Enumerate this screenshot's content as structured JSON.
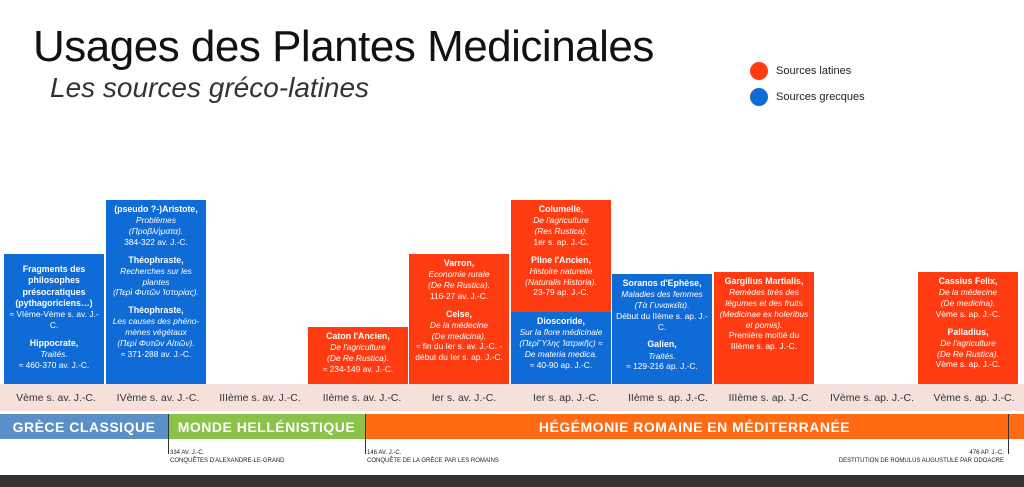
{
  "title": "Usages des Plantes Medicinales",
  "subtitle": "Les sources gréco-latines",
  "legend": [
    {
      "label": "Sources latines",
      "color": "#ff3b12"
    },
    {
      "label": "Sources grecques",
      "color": "#0f6bd6"
    }
  ],
  "centuries": [
    "Vème s. av. J.-C.",
    "IVème s. av. J.-C.",
    "IIIème s. av. J.-C.",
    "IIème s. av. J.-C.",
    "Ier s. av. J.-C.",
    "Ier s. ap. J.-C.",
    "IIème s. ap. J.-C.",
    "IIIème s. ap. J.-C.",
    "IVème s. ap. J.-C.",
    "Vème s. ap. J.-C."
  ],
  "periods": [
    {
      "label": "GRÈCE CLASSIQUE",
      "color": "#5b8fc7"
    },
    {
      "label": "MONDE HELLÉNISTIQUE",
      "color": "#8bc34a"
    },
    {
      "label": "HÉGÉMONIE ROMAINE EN MÉDITERRANÉE",
      "color": "#ff6a13"
    }
  ],
  "events": [
    {
      "date": "334 AV. J.-C.",
      "label": "CONQUÊTES D'ALEXANDRE-LE-GRAND"
    },
    {
      "date": "146 AV. J.-C.",
      "label": "CONQUÊTE DE LA GRÈCE PAR LES ROMAINS"
    },
    {
      "date": "476 AP. J.-C.",
      "label": "DESTITUTION DE ROMULUS AUGUSTULE PAR ODOACRE"
    }
  ],
  "boxes": [
    {
      "color": "blue",
      "entries": [
        {
          "author": "Fragments des philosophes présocratiques (pythagoriciens…)",
          "work": "",
          "orig": "",
          "date": "≈ VIème-Vème s. av. J.-C."
        },
        {
          "author": "Hippocrate",
          "work": "Traités.",
          "orig": "",
          "date": "≈ 460-370 av. J.-C."
        }
      ]
    },
    {
      "color": "blue",
      "entries": [
        {
          "author": "(pseudo ?-)Aristote",
          "work": "Problèmes",
          "orig": "(Προβλήματα).",
          "date": "384-322 av. J.-C."
        },
        {
          "author": "Théophraste",
          "work": "Recherches sur les plantes",
          "orig": "(Περὶ Φυτῶν Ἱστορίας).",
          "date": ""
        },
        {
          "author": "Théophraste",
          "work": "Les causes des phéno-mènes végétaux",
          "orig": "(Περὶ Φυτῶν Αἰτιῶν).",
          "date": "≈ 371-288 av. J.-C."
        }
      ]
    },
    {
      "color": "red",
      "entries": [
        {
          "author": "Caton l'Ancien",
          "work": "De l'agriculture",
          "orig": "(De Re Rustica).",
          "date": "≈ 234-149 av. J.-C."
        }
      ]
    },
    {
      "color": "red",
      "entries": [
        {
          "author": "Varron",
          "work": "Economie rurale",
          "orig": "(De Re Rustica).",
          "date": "116-27 av. J.-C."
        },
        {
          "author": "Celse",
          "work": "De la médecine",
          "orig": "(De medicina).",
          "date": "≈ fin du Ier s. av. J.-C. - début du Ier s. ap. J.-C."
        }
      ]
    },
    {
      "color": "red",
      "entries": [
        {
          "author": "Columelle",
          "work": "De l'agriculture",
          "orig": "(Res Rustica).",
          "date": "1er s. ap. J.-C."
        },
        {
          "author": "Pline l'Ancien",
          "work": "Histoire naturelle",
          "orig": "(Naturalis Historia).",
          "date": "23-79 ap. J.-C."
        }
      ]
    },
    {
      "color": "blue",
      "entries": [
        {
          "author": "Dioscoride",
          "work": "Sur la flore médicinale",
          "orig": "(ΠερὶὝλης Ἰατρικῆς) ≈ De materia medica.",
          "date": "≈ 40-90 ap. J.-C."
        }
      ]
    },
    {
      "color": "blue",
      "entries": [
        {
          "author": "Soranos d'Ephèse",
          "work": "Maladies des femmes",
          "orig": "(Τὰ Γυναικεῖα).",
          "date": "Début du IIème s. ap. J.-C."
        },
        {
          "author": "Galien",
          "work": "Traités.",
          "orig": "",
          "date": "≈ 129-216 ap. J.-C."
        }
      ]
    },
    {
      "color": "red",
      "entries": [
        {
          "author": "Gargilius Martialis",
          "work": "Remèdes tirés des légumes et des fruits",
          "orig": "(Medicinae ex holeribus et pomis).",
          "date": "Première moitié du IIIème s. ap. J.-C."
        }
      ]
    },
    {
      "color": "red",
      "entries": [
        {
          "author": "Cassius Felix",
          "work": "De la médecine",
          "orig": "(De medicina).",
          "date": "Vème s. ap. J.-C."
        },
        {
          "author": "Palladius",
          "work": "De l'agriculture",
          "orig": "(De Re Rustica).",
          "date": "Vème s. ap. J.-C."
        }
      ]
    }
  ]
}
